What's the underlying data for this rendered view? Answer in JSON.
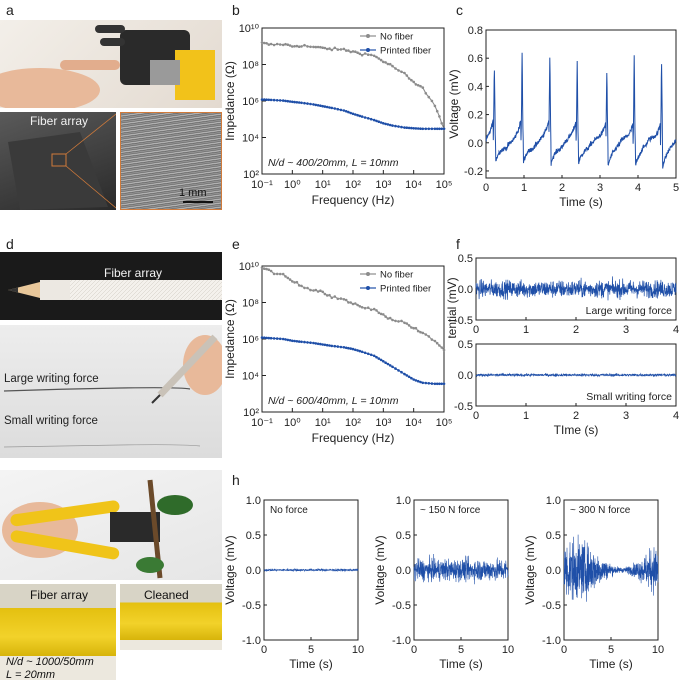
{
  "panel_labels": {
    "a": "a",
    "b": "b",
    "c": "c",
    "d": "d",
    "e": "e",
    "f": "f",
    "g": "g",
    "h": "h"
  },
  "photos": {
    "a_fiber_array": "Fiber array",
    "a_scale": "1 mm",
    "d_fiber_array": "Fiber array",
    "d_large": "Large writing force",
    "d_small": "Small writing force",
    "g_fiber_array": "Fiber array",
    "g_cleaned": "Cleaned",
    "g_spec_line1": "N/d ~ 1000/50mm",
    "g_spec_line2": "L = 20mm"
  },
  "colors": {
    "no_fiber": "#8c8c8c",
    "printed_fiber": "#1f4fa8",
    "signal": "#1f4fa8"
  },
  "chart_data": [
    {
      "id": "b",
      "type": "line",
      "xlabel": "Frequency (Hz)",
      "ylabel": "Impedance (Ω)",
      "xscale": "log",
      "yscale": "log",
      "xlim": [
        0.1,
        100000
      ],
      "ylim": [
        100,
        10000000000
      ],
      "xticks": [
        "10⁻¹",
        "10⁰",
        "10¹",
        "10²",
        "10³",
        "10⁴",
        "10⁵"
      ],
      "yticks": [
        "10²",
        "10⁴",
        "10⁶",
        "10⁸",
        "10¹⁰"
      ],
      "annotation": "N/d ~ 400/20mm, L = 10mm",
      "legend": "top-right",
      "series": [
        {
          "name": "No fiber",
          "x": [
            0.1,
            0.2,
            0.5,
            1,
            2,
            5,
            10,
            20,
            50,
            100,
            200,
            500,
            1000,
            2000,
            5000,
            10000,
            20000,
            50000,
            100000
          ],
          "y": [
            1500000000,
            1200000000,
            1300000000,
            1000000000,
            1100000000,
            900000000,
            800000000,
            700000000,
            650000000,
            500000000,
            400000000,
            300000000,
            150000000,
            80000000,
            30000000,
            10000000,
            5000000,
            600000,
            30000
          ]
        },
        {
          "name": "Printed fiber",
          "x": [
            0.1,
            0.2,
            0.5,
            1,
            2,
            5,
            10,
            20,
            50,
            100,
            200,
            500,
            1000,
            2000,
            5000,
            10000,
            20000,
            50000,
            100000
          ],
          "y": [
            1200000,
            1150000,
            1050000,
            900000,
            800000,
            650000,
            520000,
            420000,
            300000,
            200000,
            140000,
            90000,
            60000,
            45000,
            35000,
            32000,
            30000,
            30000,
            30000
          ]
        }
      ]
    },
    {
      "id": "c",
      "type": "line",
      "xlabel": "Time (s)",
      "ylabel": "Voltage (mV)",
      "xlim": [
        0,
        5
      ],
      "ylim": [
        -0.25,
        0.8
      ],
      "xticks": [
        0,
        1,
        2,
        3,
        4,
        5
      ],
      "yticks": [
        -0.2,
        0.0,
        0.2,
        0.4,
        0.6,
        0.8
      ],
      "spikes": [
        {
          "t": 0.22,
          "peak": 0.54
        },
        {
          "t": 0.95,
          "peak": 0.63
        },
        {
          "t": 1.68,
          "peak": 0.63
        },
        {
          "t": 2.4,
          "peak": 0.57
        },
        {
          "t": 3.18,
          "peak": 0.52
        },
        {
          "t": 3.9,
          "peak": 0.62
        },
        {
          "t": 4.62,
          "peak": 0.61
        }
      ]
    },
    {
      "id": "e",
      "type": "line",
      "xlabel": "Frequency (Hz)",
      "ylabel": "Impedance (Ω)",
      "xscale": "log",
      "yscale": "log",
      "xlim": [
        0.1,
        100000
      ],
      "ylim": [
        100,
        10000000000
      ],
      "xticks": [
        "10⁻¹",
        "10⁰",
        "10¹",
        "10²",
        "10³",
        "10⁴",
        "10⁵"
      ],
      "yticks": [
        "10²",
        "10⁴",
        "10⁶",
        "10⁸",
        "10¹⁰"
      ],
      "annotation": "N/d ~ 600/40mm, L = 10mm",
      "legend": "top-right",
      "series": [
        {
          "name": "No fiber",
          "x": [
            0.1,
            0.2,
            0.5,
            1,
            2,
            5,
            10,
            20,
            50,
            100,
            200,
            500,
            1000,
            2000,
            5000,
            10000,
            20000,
            50000,
            100000
          ],
          "y": [
            8000000000,
            5000000000,
            3000000000,
            1500000000,
            800000000,
            500000000,
            400000000,
            200000000,
            150000000,
            80000000,
            60000000,
            40000000,
            20000000,
            12000000,
            8000000,
            4000000,
            2000000,
            800000,
            250000
          ]
        },
        {
          "name": "Printed fiber",
          "x": [
            0.1,
            0.2,
            0.5,
            1,
            2,
            5,
            10,
            20,
            50,
            100,
            200,
            500,
            1000,
            2000,
            5000,
            10000,
            20000,
            50000,
            100000
          ],
          "y": [
            1200000,
            1100000,
            1000000,
            800000,
            700000,
            600000,
            500000,
            420000,
            350000,
            280000,
            200000,
            120000,
            60000,
            30000,
            12000,
            6000,
            4000,
            3500,
            3500
          ]
        }
      ]
    },
    {
      "id": "f_top",
      "type": "line",
      "ylabel": "EMG potential (mV)",
      "xlim": [
        0,
        4
      ],
      "ylim": [
        -0.5,
        0.5
      ],
      "xticks": [
        0,
        1,
        2,
        3,
        4
      ],
      "yticks": [
        -0.5,
        0.0,
        0.5
      ],
      "annotation": "Large writing force",
      "amplitude": 0.2
    },
    {
      "id": "f_bottom",
      "type": "line",
      "xlabel": "TIme (s)",
      "xlim": [
        0,
        4
      ],
      "ylim": [
        -0.5,
        0.5
      ],
      "xticks": [
        0,
        1,
        2,
        3,
        4
      ],
      "yticks": [
        -0.5,
        0.0,
        0.5
      ],
      "annotation": "Small writing force",
      "amplitude": 0.03
    },
    {
      "id": "h1",
      "type": "line",
      "xlabel": "Time (s)",
      "ylabel": "Voltage (mV)",
      "xlim": [
        0,
        10
      ],
      "ylim": [
        -1.0,
        1.0
      ],
      "xticks": [
        0,
        5,
        10
      ],
      "yticks": [
        -1.0,
        -0.5,
        0.0,
        0.5,
        1.0
      ],
      "annotation": "No force",
      "amplitude": 0.02
    },
    {
      "id": "h2",
      "type": "line",
      "xlabel": "Time (s)",
      "ylabel": "Voltage (mV)",
      "xlim": [
        0,
        10
      ],
      "ylim": [
        -1.0,
        1.0
      ],
      "xticks": [
        0,
        5,
        10
      ],
      "yticks": [
        -1.0,
        -0.5,
        0.0,
        0.5,
        1.0
      ],
      "annotation": "~ 150 N force",
      "amplitude": 0.22
    },
    {
      "id": "h3",
      "type": "line",
      "xlabel": "Time (s)",
      "ylabel": "Voltage (mV)",
      "xlim": [
        0,
        10
      ],
      "ylim": [
        -1.0,
        1.0
      ],
      "xticks": [
        0,
        5,
        10
      ],
      "yticks": [
        -1.0,
        -0.5,
        0.0,
        0.5,
        1.0
      ],
      "annotation": "~ 300 N force",
      "amplitude": 0.55
    }
  ]
}
